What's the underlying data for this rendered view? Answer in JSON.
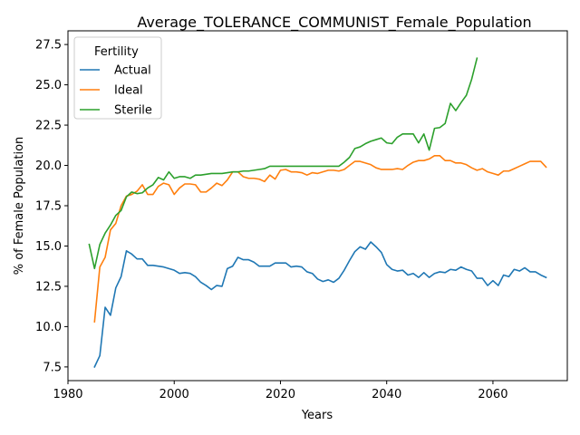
{
  "chart_data": {
    "type": "line",
    "title": "Average_TOLERANCE_COMMUNIST_Female_Population",
    "xlabel": "Years",
    "ylabel": "% of Female Population",
    "xlim": [
      1980,
      2074
    ],
    "ylim": [
      6.65,
      28.35
    ],
    "xticks": [
      1980,
      2000,
      2020,
      2040,
      2060
    ],
    "yticks": [
      7.5,
      10.0,
      12.5,
      15.0,
      17.5,
      20.0,
      22.5,
      25.0,
      27.5
    ],
    "grid": false,
    "legend": {
      "title": "Fertility",
      "placement": "top-left"
    },
    "series": [
      {
        "name": "Actual",
        "color": "#1f77b4",
        "x": [
          1985,
          1986,
          1987,
          1988,
          1989,
          1990,
          1991,
          1992,
          1993,
          1994,
          1995,
          1996,
          1997,
          1998,
          1999,
          2000,
          2001,
          2002,
          2003,
          2004,
          2005,
          2006,
          2007,
          2008,
          2009,
          2010,
          2011,
          2012,
          2013,
          2014,
          2015,
          2016,
          2017,
          2018,
          2019,
          2020,
          2021,
          2022,
          2023,
          2024,
          2025,
          2026,
          2027,
          2028,
          2029,
          2030,
          2031,
          2032,
          2033,
          2034,
          2035,
          2036,
          2037,
          2038,
          2039,
          2040,
          2041,
          2042,
          2043,
          2044,
          2045,
          2046,
          2047,
          2048,
          2049,
          2050,
          2051,
          2052,
          2053,
          2054,
          2055,
          2056,
          2057,
          2058,
          2059,
          2060,
          2061,
          2062,
          2063,
          2064,
          2065,
          2066,
          2067,
          2068,
          2069,
          2070
        ],
        "values": [
          7.5,
          8.2,
          11.2,
          10.7,
          12.4,
          13.1,
          14.7,
          14.5,
          14.2,
          14.2,
          13.8,
          13.8,
          13.75,
          13.7,
          13.6,
          13.5,
          13.3,
          13.35,
          13.3,
          13.1,
          12.75,
          12.55,
          12.3,
          12.55,
          12.5,
          13.6,
          13.75,
          14.3,
          14.15,
          14.15,
          14.0,
          13.75,
          13.75,
          13.75,
          13.95,
          13.95,
          13.95,
          13.7,
          13.75,
          13.7,
          13.4,
          13.3,
          12.95,
          12.8,
          12.9,
          12.75,
          13.0,
          13.5,
          14.1,
          14.65,
          14.95,
          14.8,
          15.25,
          14.95,
          14.6,
          13.85,
          13.55,
          13.45,
          13.5,
          13.2,
          13.3,
          13.05,
          13.35,
          13.05,
          13.3,
          13.4,
          13.35,
          13.55,
          13.5,
          13.7,
          13.55,
          13.45,
          13.0,
          13.0,
          12.55,
          12.85,
          12.55,
          13.2,
          13.1,
          13.55,
          13.45,
          13.65,
          13.4,
          13.4,
          13.2,
          13.05
        ]
      },
      {
        "name": "Ideal",
        "color": "#ff7f0e",
        "x": [
          1985,
          1986,
          1987,
          1988,
          1989,
          1990,
          1991,
          1992,
          1993,
          1994,
          1995,
          1996,
          1997,
          1998,
          1999,
          2000,
          2001,
          2002,
          2003,
          2004,
          2005,
          2006,
          2007,
          2008,
          2009,
          2010,
          2011,
          2012,
          2013,
          2014,
          2015,
          2016,
          2017,
          2018,
          2019,
          2020,
          2021,
          2022,
          2023,
          2024,
          2025,
          2026,
          2027,
          2028,
          2029,
          2030,
          2031,
          2032,
          2033,
          2034,
          2035,
          2036,
          2037,
          2038,
          2039,
          2040,
          2041,
          2042,
          2043,
          2044,
          2045,
          2046,
          2047,
          2048,
          2049,
          2050,
          2051,
          2052,
          2053,
          2054,
          2055,
          2056,
          2057,
          2058,
          2059,
          2060,
          2061,
          2062,
          2063,
          2064,
          2065,
          2066,
          2067,
          2068,
          2069,
          2070
        ],
        "values": [
          10.3,
          13.7,
          14.3,
          16.0,
          16.4,
          17.5,
          18.1,
          18.2,
          18.4,
          18.8,
          18.2,
          18.2,
          18.7,
          18.9,
          18.8,
          18.2,
          18.6,
          18.85,
          18.85,
          18.8,
          18.35,
          18.35,
          18.6,
          18.9,
          18.75,
          19.1,
          19.6,
          19.6,
          19.3,
          19.2,
          19.2,
          19.15,
          19.0,
          19.4,
          19.15,
          19.7,
          19.75,
          19.6,
          19.6,
          19.55,
          19.4,
          19.55,
          19.5,
          19.6,
          19.7,
          19.7,
          19.65,
          19.75,
          20.0,
          20.25,
          20.25,
          20.15,
          20.05,
          19.85,
          19.75,
          19.75,
          19.75,
          19.8,
          19.75,
          20.0,
          20.2,
          20.3,
          20.3,
          20.4,
          20.6,
          20.6,
          20.3,
          20.3,
          20.15,
          20.15,
          20.05,
          19.85,
          19.7,
          19.8,
          19.6,
          19.5,
          19.4,
          19.65,
          19.65,
          19.8,
          19.95,
          20.1,
          20.25,
          20.25,
          20.25,
          19.9
        ]
      },
      {
        "name": "Sterile",
        "color": "#2ca02c",
        "x": [
          1984,
          1985,
          1986,
          1987,
          1988,
          1989,
          1990,
          1991,
          1992,
          1993,
          1994,
          1995,
          1996,
          1997,
          1998,
          1999,
          2000,
          2001,
          2002,
          2003,
          2004,
          2005,
          2006,
          2007,
          2008,
          2009,
          2010,
          2011,
          2012,
          2013,
          2014,
          2015,
          2016,
          2017,
          2018,
          2019,
          2020,
          2021,
          2022,
          2023,
          2024,
          2025,
          2026,
          2027,
          2028,
          2029,
          2030,
          2031,
          2032,
          2033,
          2034,
          2035,
          2036,
          2037,
          2038,
          2039,
          2040,
          2041,
          2042,
          2043,
          2044,
          2045,
          2046,
          2047,
          2048,
          2049,
          2050,
          2051,
          2052,
          2053,
          2054,
          2055,
          2056,
          2057
        ],
        "values": [
          15.1,
          13.6,
          15.1,
          15.8,
          16.3,
          16.9,
          17.2,
          18.05,
          18.35,
          18.25,
          18.3,
          18.6,
          18.8,
          19.25,
          19.1,
          19.6,
          19.2,
          19.3,
          19.3,
          19.2,
          19.4,
          19.4,
          19.45,
          19.5,
          19.5,
          19.5,
          19.55,
          19.6,
          19.6,
          19.65,
          19.65,
          19.7,
          19.75,
          19.8,
          19.95,
          19.95,
          19.95,
          19.95,
          19.95,
          19.95,
          19.95,
          19.95,
          19.95,
          19.95,
          19.95,
          19.95,
          19.95,
          19.95,
          20.2,
          20.5,
          21.05,
          21.15,
          21.35,
          21.5,
          21.6,
          21.7,
          21.4,
          21.35,
          21.75,
          21.95,
          21.95,
          21.95,
          21.4,
          21.95,
          20.95,
          22.3,
          22.35,
          22.6,
          23.85,
          23.4,
          23.9,
          24.35,
          25.35,
          26.65
        ]
      }
    ]
  }
}
